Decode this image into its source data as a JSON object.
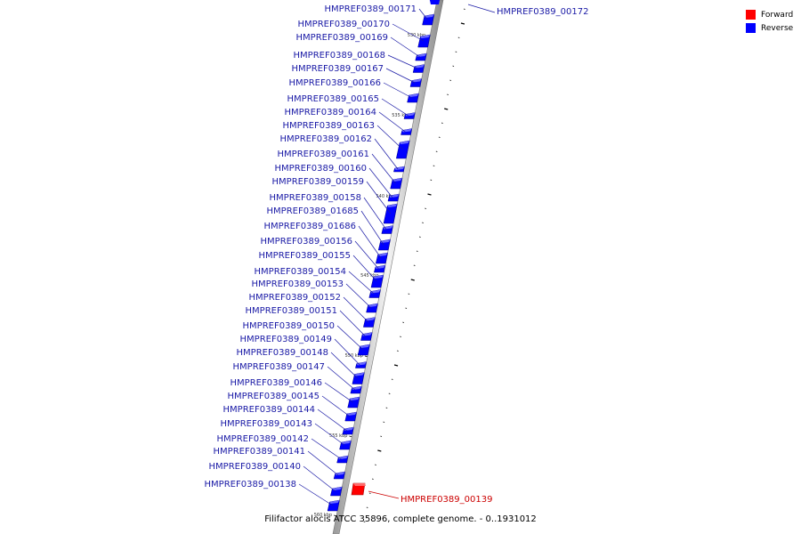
{
  "legend": [
    {
      "label": "Forward",
      "color": "#ff0000"
    },
    {
      "label": "Reverse",
      "color": "#0000ff"
    }
  ],
  "caption": "Filifactor alocis ATCC 35896, complete genome. - 0..1931012",
  "ticks": [
    "530 kbp",
    "535 kbp",
    "540 kbp",
    "545 kbp",
    "550 kbp",
    "555 kbp",
    "560 kbp"
  ],
  "reverse_genes": [
    "HMPREF0389_00171",
    "HMPREF0389_00170",
    "HMPREF0389_00169",
    "HMPREF0389_00168",
    "HMPREF0389_00167",
    "HMPREF0389_00166",
    "HMPREF0389_00165",
    "HMPREF0389_00164",
    "HMPREF0389_00163",
    "HMPREF0389_00162",
    "HMPREF0389_00161",
    "HMPREF0389_00160",
    "HMPREF0389_00159",
    "HMPREF0389_00158",
    "HMPREF0389_01685",
    "HMPREF0389_01686",
    "HMPREF0389_00156",
    "HMPREF0389_00155",
    "HMPREF0389_00154",
    "HMPREF0389_00153",
    "HMPREF0389_00152",
    "HMPREF0389_00151",
    "HMPREF0389_00150",
    "HMPREF0389_00149",
    "HMPREF0389_00148",
    "HMPREF0389_00147",
    "HMPREF0389_00146",
    "HMPREF0389_00145",
    "HMPREF0389_00144",
    "HMPREF0389_00143",
    "HMPREF0389_00142",
    "HMPREF0389_00141",
    "HMPREF0389_00140",
    "HMPREF0389_00138"
  ],
  "top_gene": "HMPREF0389_00172",
  "forward_gene": "HMPREF0389_00139",
  "colors": {
    "reverse": "#0000ff",
    "forward": "#ff0000",
    "reverse_label": "#1a1aa6",
    "forward_label": "#cc0000"
  }
}
